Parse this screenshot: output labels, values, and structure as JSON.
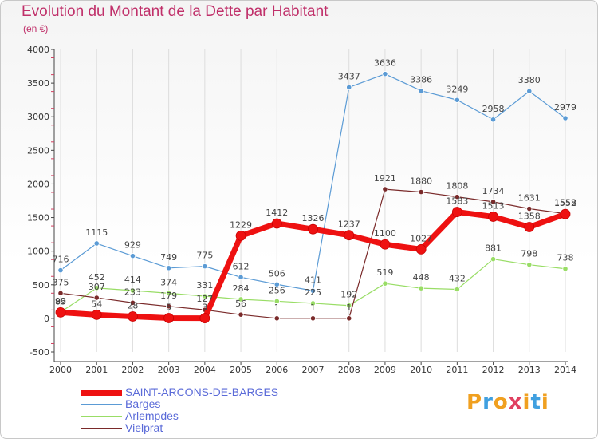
{
  "chart_data": {
    "type": "line",
    "title": "Evolution du Montant de la Dette par Habitant",
    "subtitle": "(en €)",
    "xlabel": "",
    "ylabel": "",
    "categories": [
      "2000",
      "2001",
      "2002",
      "2003",
      "2004",
      "2005",
      "2006",
      "2007",
      "2008",
      "2009",
      "2010",
      "2011",
      "2012",
      "2013",
      "2014"
    ],
    "ylim": [
      -500,
      4000
    ],
    "yticks": [
      -500,
      0,
      500,
      1000,
      1500,
      2000,
      2500,
      3000,
      3500,
      4000
    ],
    "grid": "vertical",
    "legend_position": "bottom-left",
    "series": [
      {
        "name": "SAINT-ARCONS-DE-BARGES",
        "color": "#ee1111",
        "values": [
          89,
          54,
          28,
          5,
          3,
          1229,
          1412,
          1326,
          1237,
          1100,
          1027,
          1583,
          1513,
          1358,
          1552
        ]
      },
      {
        "name": "Barges",
        "color": "#5b9bd5",
        "values": [
          716,
          1115,
          929,
          749,
          775,
          612,
          506,
          411,
          3437,
          3636,
          3386,
          3249,
          2958,
          3380,
          2979
        ]
      },
      {
        "name": "Arlempdes",
        "color": "#99dd66",
        "values": [
          93,
          452,
          414,
          374,
          331,
          284,
          256,
          225,
          192,
          519,
          448,
          432,
          881,
          798,
          738
        ]
      },
      {
        "name": "Vielprat",
        "color": "#7a2a2a",
        "values": [
          375,
          307,
          233,
          179,
          127,
          56,
          1,
          1,
          1,
          1921,
          1880,
          1808,
          1734,
          1631,
          1558
        ]
      }
    ]
  },
  "brand": {
    "letters": [
      "P",
      "r",
      "o",
      "x",
      "i",
      "t",
      "i"
    ],
    "colors": [
      "#f0a020",
      "#40a0e0",
      "#f0a020",
      "#e04060",
      "#f0a020",
      "#40a0e0",
      "#f0a020"
    ]
  }
}
